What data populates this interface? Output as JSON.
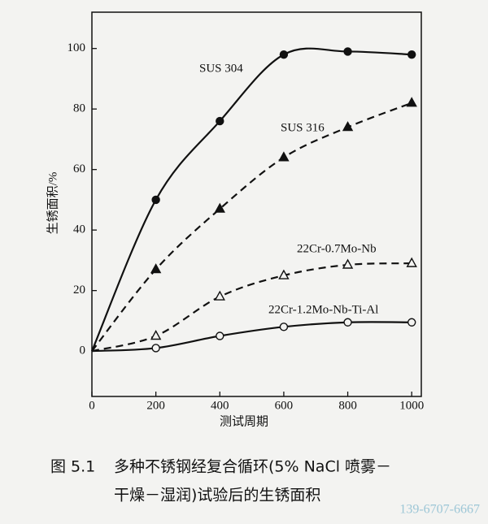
{
  "chart_data": {
    "type": "line",
    "x_label": "测试周期",
    "y_label": "生锈面积/%",
    "x": [
      0,
      200,
      400,
      600,
      800,
      1000
    ],
    "xlim": [
      0,
      1030
    ],
    "xticks": [
      0,
      200,
      400,
      600,
      800,
      1000
    ],
    "ylim": [
      -15,
      112
    ],
    "yticks": [
      0,
      20,
      40,
      60,
      80,
      100
    ],
    "series": [
      {
        "name": "SUS 304",
        "color": "#111111",
        "dash": false,
        "marker": "circle",
        "filled": true,
        "values": [
          0,
          50,
          76,
          98,
          99,
          98
        ]
      },
      {
        "name": "SUS 316",
        "color": "#111111",
        "dash": true,
        "marker": "triangle",
        "filled": true,
        "values": [
          0,
          27,
          47,
          64,
          74,
          82
        ]
      },
      {
        "name": "22Cr-0.7Mo-Nb",
        "color": "#111111",
        "dash": true,
        "marker": "triangle",
        "filled": false,
        "values": [
          0,
          5,
          18,
          25,
          28.5,
          29
        ]
      },
      {
        "name": "22Cr-1.2Mo-Nb-Ti-Al",
        "color": "#111111",
        "dash": false,
        "marker": "circle",
        "filled": false,
        "values": [
          0,
          1,
          5,
          8,
          9.5,
          9.5
        ]
      }
    ],
    "caption": {
      "number": "图 5.1",
      "lines": [
        "多种不锈钢经复合循环(5% NaCl 喷雾－",
        "干燥－湿润)试验后的生锈面积"
      ]
    },
    "watermark": "139-6707-6667"
  }
}
